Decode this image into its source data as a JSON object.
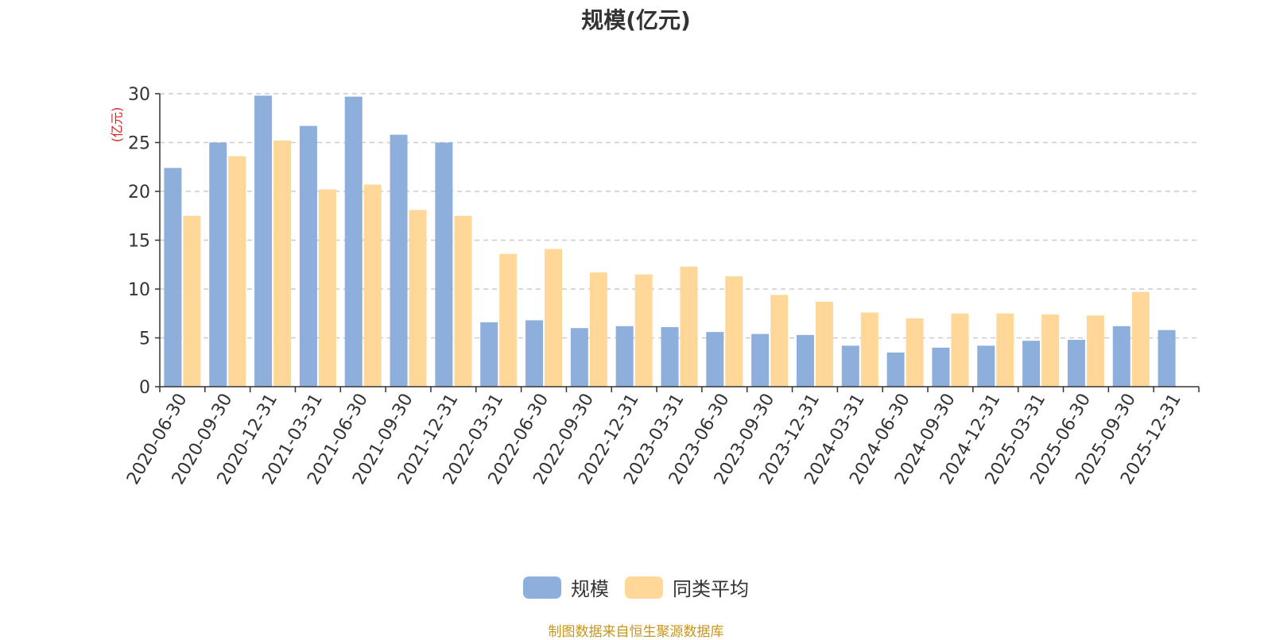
{
  "chart_data": {
    "type": "bar",
    "title": "规模(亿元)",
    "ylabel": "(亿元)",
    "ylim": [
      0,
      30
    ],
    "yticks": [
      0,
      5,
      10,
      15,
      20,
      25,
      30
    ],
    "grid": true,
    "legend_position": "bottom",
    "categories": [
      "2020-06-30",
      "2020-09-30",
      "2020-12-31",
      "2021-03-31",
      "2021-06-30",
      "2021-09-30",
      "2021-12-31",
      "2022-03-31",
      "2022-06-30",
      "2022-09-30",
      "2022-12-31",
      "2023-03-31",
      "2023-06-30",
      "2023-09-30",
      "2023-12-31",
      "2024-03-31",
      "2024-06-30",
      "2024-09-30",
      "2024-12-31",
      "2025-03-31",
      "2025-06-30",
      "2025-09-30",
      "2025-12-31"
    ],
    "series": [
      {
        "name": "规模",
        "color": "#8eaedc",
        "values": [
          22.4,
          25.0,
          29.8,
          26.7,
          29.7,
          25.8,
          25.0,
          6.6,
          6.8,
          6.0,
          6.2,
          6.1,
          5.6,
          5.4,
          5.3,
          4.2,
          3.5,
          4.0,
          4.2,
          4.7,
          4.8,
          6.2,
          5.8
        ]
      },
      {
        "name": "同类平均",
        "color": "#ffd899",
        "values": [
          17.5,
          23.6,
          25.2,
          20.2,
          20.7,
          18.1,
          17.5,
          13.6,
          14.1,
          11.7,
          11.5,
          12.3,
          11.3,
          9.4,
          8.7,
          7.6,
          7.0,
          7.5,
          7.5,
          7.4,
          7.3,
          9.7,
          null
        ]
      }
    ]
  },
  "source_note": "制图数据来自恒生聚源数据库"
}
